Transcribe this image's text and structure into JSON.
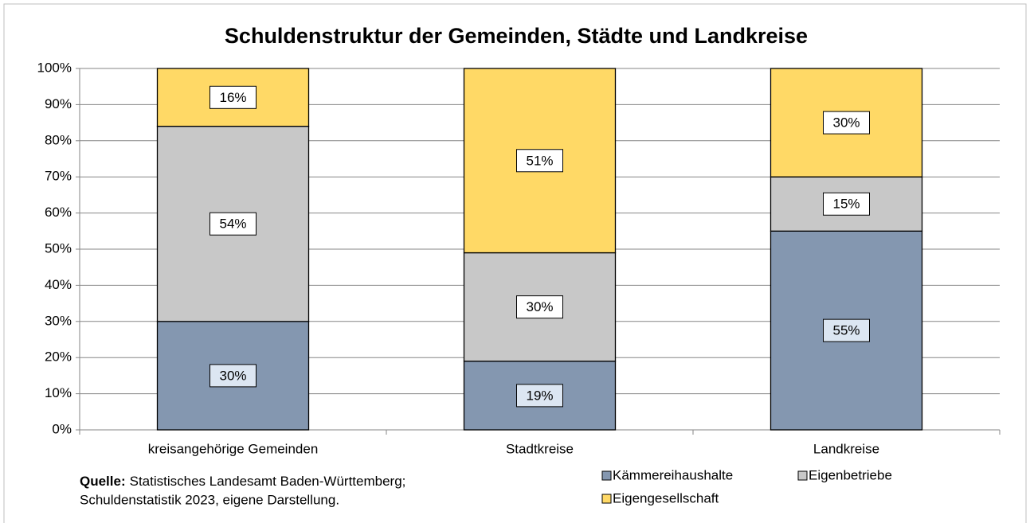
{
  "chart_data": {
    "type": "stacked_bar",
    "title": "Schuldenstruktur der Gemeinden, Städte und Landkreise",
    "categories": [
      "kreisangehörige Gemeinden",
      "Stadtkreise",
      "Landkreise"
    ],
    "series": [
      {
        "name": "Kämmereihaushalte",
        "color": "#8497b0",
        "values": [
          30,
          19,
          55
        ],
        "value_labels": [
          "30%",
          "19%",
          "55%"
        ]
      },
      {
        "name": "Eigenbetriebe",
        "color": "#c8c8c8",
        "values": [
          54,
          30,
          15
        ],
        "value_labels": [
          "54%",
          "30%",
          "15%"
        ]
      },
      {
        "name": "Eigengesellschaft",
        "color": "#ffd966",
        "values": [
          16,
          51,
          30
        ],
        "value_labels": [
          "16%",
          "51%",
          "30%"
        ]
      }
    ],
    "ylim": [
      0,
      100
    ],
    "yticks": [
      {
        "value": 0,
        "label": "0%"
      },
      {
        "value": 10,
        "label": "10%"
      },
      {
        "value": 20,
        "label": "20%"
      },
      {
        "value": 30,
        "label": "30%"
      },
      {
        "value": 40,
        "label": "40%"
      },
      {
        "value": 50,
        "label": "50%"
      },
      {
        "value": 60,
        "label": "60%"
      },
      {
        "value": 70,
        "label": "70%"
      },
      {
        "value": 80,
        "label": "80%"
      },
      {
        "value": 90,
        "label": "90%"
      },
      {
        "value": 100,
        "label": "100%"
      }
    ],
    "grid": true,
    "source_label": "Quelle:",
    "source_lines": [
      "Statistisches Landesamt Baden-Württemberg;",
      "Schuldenstatistik 2023, eigene Darstellung."
    ]
  }
}
